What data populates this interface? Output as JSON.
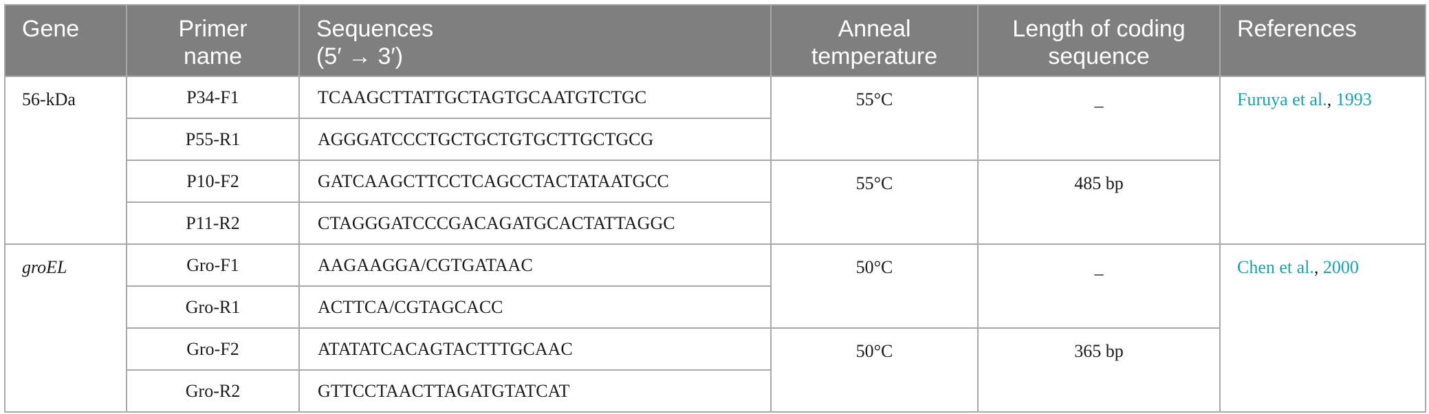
{
  "table": {
    "headers": {
      "gene": [
        "Gene"
      ],
      "primer_name": [
        "Primer",
        "name"
      ],
      "sequences": [
        "Sequences",
        "(5′ → 3′)"
      ],
      "anneal": [
        "Anneal",
        "temperature"
      ],
      "length": [
        "Length of coding",
        "sequence"
      ],
      "references": [
        "References"
      ]
    },
    "groups": [
      {
        "gene": "56-kDa",
        "reference": {
          "authors": "Furuya et al.",
          "separator": ", ",
          "year": "1993"
        },
        "pairs": [
          {
            "anneal": "55°C",
            "length": "_",
            "rows": [
              {
                "primer": "P34-F1",
                "sequence": "TCAAGCTTATTGCTAGTGCAATGTCTGC"
              },
              {
                "primer": "P55-R1",
                "sequence": "AGGGATCCCTGCTGCTGTGCTTGCTGCG"
              }
            ]
          },
          {
            "anneal": "55°C",
            "length": "485 bp",
            "rows": [
              {
                "primer": "P10-F2",
                "sequence": "GATCAAGCTTCCTCAGCCTACTATAATGCC"
              },
              {
                "primer": "P11-R2",
                "sequence": "CTAGGGATCCCGACAGATGCACTATTAGGC"
              }
            ]
          }
        ]
      },
      {
        "gene": "groEL",
        "reference": {
          "authors": "Chen et al.",
          "separator": ", ",
          "year": "2000"
        },
        "pairs": [
          {
            "anneal": "50°C",
            "length": "_",
            "rows": [
              {
                "primer": "Gro-F1",
                "sequence": "AAGAAGGA/CGTGATAAC"
              },
              {
                "primer": "Gro-R1",
                "sequence": "ACTTCA/CGTAGCACC"
              }
            ]
          },
          {
            "anneal": "50°C",
            "length": "365 bp",
            "rows": [
              {
                "primer": "Gro-F2",
                "sequence": "ATATATCACAGTACTTTGCAAC"
              },
              {
                "primer": "Gro-R2",
                "sequence": "GTTCCTAACTTAGATGTATCAT"
              }
            ]
          }
        ]
      }
    ]
  }
}
